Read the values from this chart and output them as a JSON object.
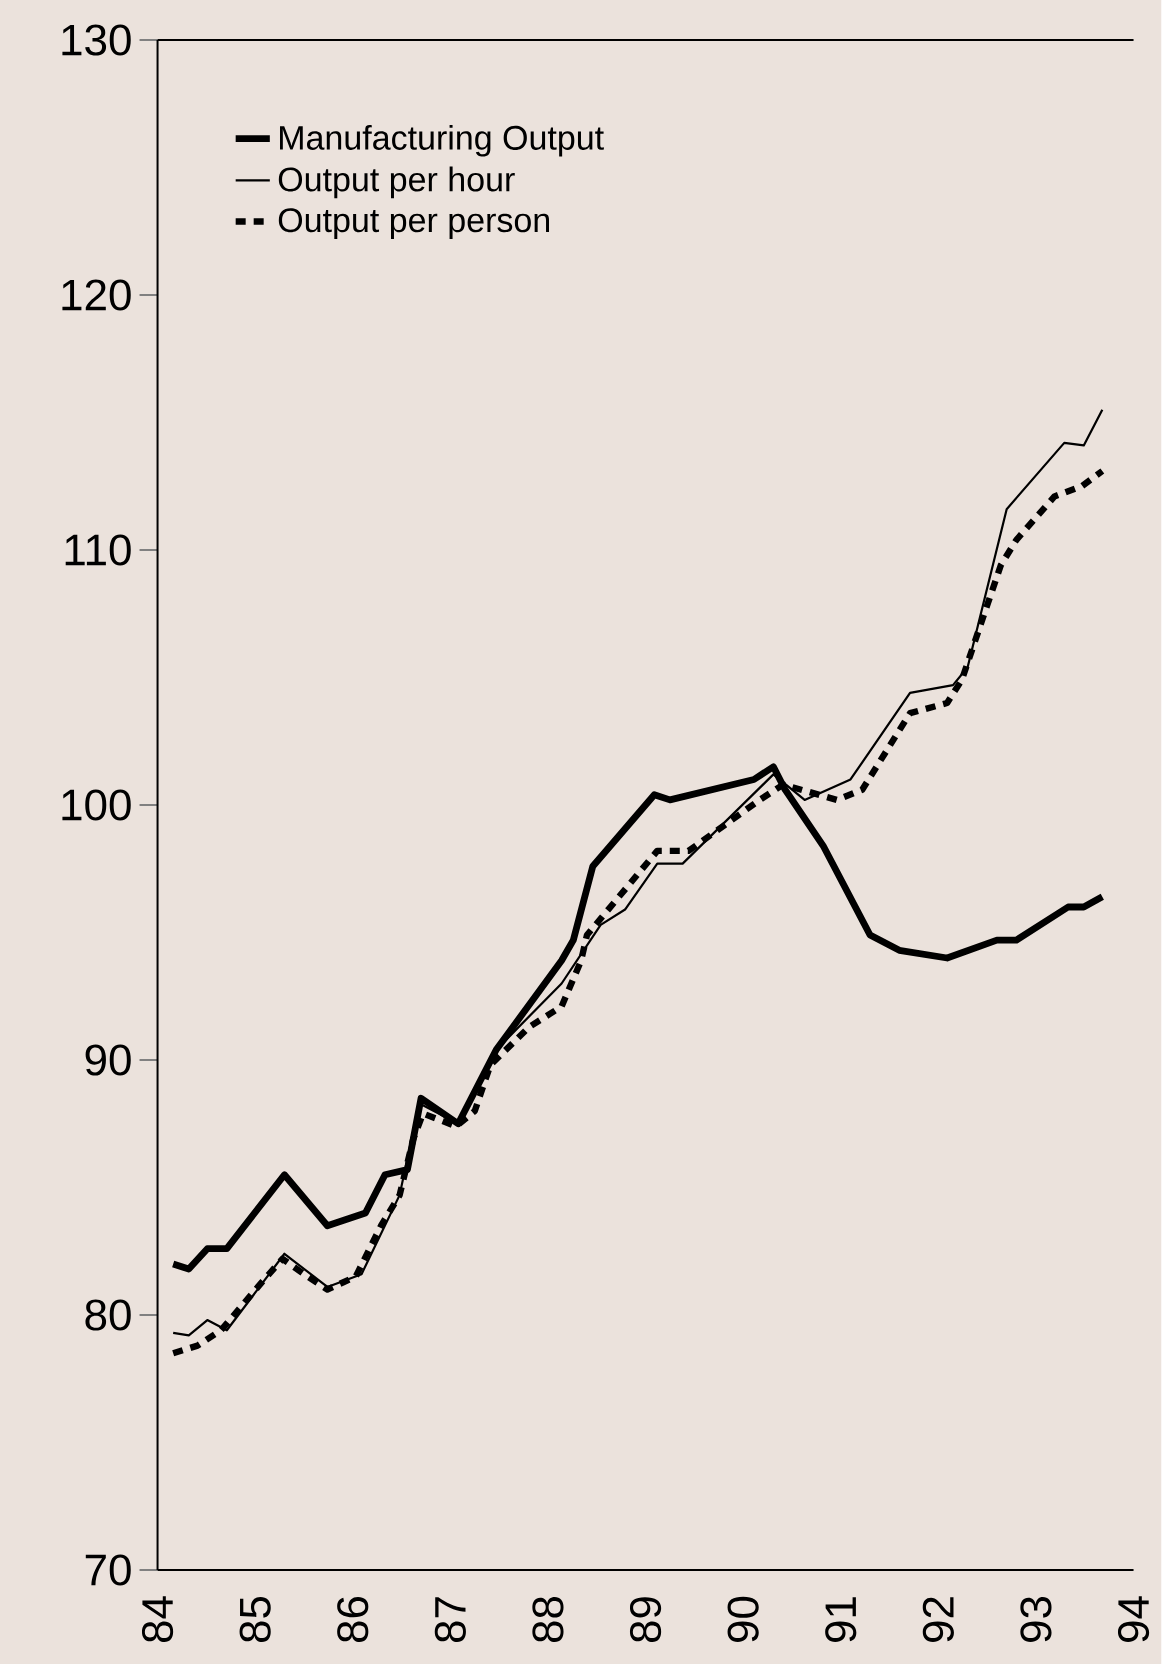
{
  "chart_data": {
    "type": "line",
    "xlim": [
      84,
      94
    ],
    "xticks": [
      84,
      85,
      86,
      87,
      88,
      89,
      90,
      91,
      92,
      93,
      94
    ],
    "ylim": [
      70,
      130
    ],
    "yticks": [
      70,
      80,
      90,
      100,
      110,
      120,
      130
    ],
    "legend": "top left",
    "grid": false,
    "marker": "none",
    "series": [
      {
        "name": "Manufacturing Output",
        "color": "#000000",
        "line_style": "solid",
        "x": [
          84.16,
          84.32,
          84.51,
          84.71,
          85.3,
          85.74,
          86.13,
          86.33,
          86.56,
          86.7,
          87.08,
          87.47,
          88.14,
          88.26,
          88.46,
          89.09,
          89.25,
          90.11,
          90.31,
          90.43,
          90.82,
          91.3,
          91.6,
          92.09,
          92.6,
          92.8,
          93.33,
          93.49,
          93.68
        ],
        "values": [
          82.0,
          81.8,
          82.6,
          82.6,
          85.5,
          83.5,
          84.0,
          85.5,
          85.7,
          88.5,
          87.5,
          90.4,
          93.9,
          94.7,
          97.6,
          100.4,
          100.2,
          101.0,
          101.5,
          100.6,
          98.4,
          94.9,
          94.3,
          94.0,
          94.7,
          94.7,
          96.0,
          96.0,
          96.4
        ]
      },
      {
        "name": "Output per hour",
        "color": "#000000",
        "line_style": "solid",
        "x": [
          84.16,
          84.32,
          84.51,
          84.71,
          85.3,
          85.74,
          86.09,
          86.48,
          86.68,
          87.08,
          87.47,
          88.14,
          88.54,
          88.79,
          89.12,
          89.38,
          90.31,
          90.63,
          91.1,
          91.71,
          92.15,
          92.3,
          92.7,
          93.29,
          93.49,
          93.68
        ],
        "values": [
          79.3,
          79.2,
          79.8,
          79.4,
          82.4,
          81.1,
          81.6,
          84.7,
          88.3,
          87.5,
          90.4,
          93.0,
          95.3,
          95.9,
          97.7,
          97.7,
          101.2,
          100.2,
          101.0,
          104.4,
          104.7,
          105.4,
          111.6,
          114.2,
          114.1,
          115.5
        ]
      },
      {
        "name": "Output per person",
        "color": "#000000",
        "line_style": "dashed",
        "x": [
          84.16,
          84.41,
          84.65,
          85.05,
          85.28,
          85.54,
          85.74,
          86.03,
          86.29,
          86.48,
          86.62,
          86.72,
          87.06,
          87.25,
          87.41,
          87.81,
          88.14,
          88.34,
          88.4,
          89.12,
          89.44,
          90.17,
          90.41,
          90.96,
          91.22,
          91.71,
          92.09,
          92.24,
          92.64,
          92.8,
          93.19,
          93.47,
          93.68
        ],
        "values": [
          78.5,
          78.8,
          79.4,
          81.2,
          82.2,
          81.5,
          81.0,
          81.5,
          83.5,
          84.7,
          86.9,
          87.9,
          87.4,
          88.0,
          89.8,
          91.3,
          92.1,
          93.9,
          94.9,
          98.2,
          98.2,
          100.2,
          100.8,
          100.2,
          100.6,
          103.6,
          104.0,
          104.9,
          109.4,
          110.4,
          112.1,
          112.5,
          113.1
        ]
      }
    ]
  }
}
